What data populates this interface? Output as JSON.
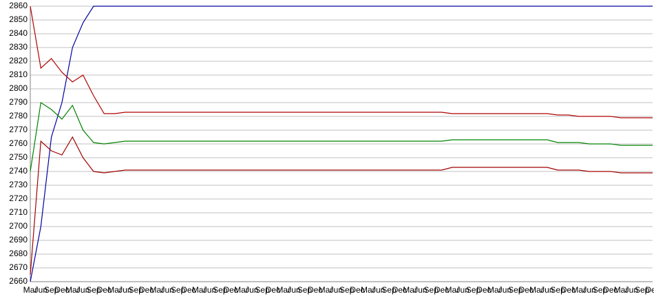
{
  "chart_data": {
    "type": "line",
    "categories": [
      "Mar",
      "Jun",
      "Sep",
      "Dec",
      "Mar",
      "Jun",
      "Sep",
      "Dec",
      "Mar",
      "Jun",
      "Sep",
      "Dec",
      "Mar",
      "Jun",
      "Sep",
      "Dec",
      "Mar",
      "Jun",
      "Sep",
      "Dec",
      "Mar",
      "Jun",
      "Sep",
      "Dec",
      "Mar",
      "Jun",
      "Sep",
      "Dec",
      "Mar",
      "Jun",
      "Sep",
      "Dec",
      "Mar",
      "Jun",
      "Sep",
      "Dec",
      "Mar",
      "Jun",
      "Sep",
      "Dec",
      "Mar",
      "Jun",
      "Sep",
      "Dec",
      "Mar",
      "Jun",
      "Sep",
      "Dec",
      "Mar",
      "Jun",
      "Sep",
      "Dec",
      "Mar",
      "Jun",
      "Sep",
      "Dec",
      "Mar",
      "Jun",
      "Sep",
      "Dec"
    ],
    "series": [
      {
        "color": "#0000a0",
        "values": [
          2660,
          2700,
          2765,
          2790,
          2830,
          2848,
          2860,
          2860,
          2860,
          2860,
          2860,
          2860,
          2860,
          2860,
          2860,
          2860,
          2860,
          2860,
          2860,
          2860,
          2860,
          2860,
          2860,
          2860,
          2860,
          2860,
          2860,
          2860,
          2860,
          2860,
          2860,
          2860,
          2860,
          2860,
          2860,
          2860,
          2860,
          2860,
          2860,
          2860,
          2860,
          2860,
          2860,
          2860,
          2860,
          2860,
          2860,
          2860,
          2860,
          2860,
          2860,
          2860,
          2860,
          2860,
          2860,
          2860,
          2860,
          2860,
          2860,
          2860
        ]
      },
      {
        "color": "#b00000",
        "values": [
          2860,
          2815,
          2822,
          2812,
          2805,
          2810,
          2795,
          2782,
          2782,
          2783,
          2783,
          2783,
          2783,
          2783,
          2783,
          2783,
          2783,
          2783,
          2783,
          2783,
          2783,
          2783,
          2783,
          2783,
          2783,
          2783,
          2783,
          2783,
          2783,
          2783,
          2783,
          2783,
          2783,
          2783,
          2783,
          2783,
          2783,
          2783,
          2783,
          2783,
          2782,
          2782,
          2782,
          2782,
          2782,
          2782,
          2782,
          2782,
          2782,
          2782,
          2781,
          2781,
          2780,
          2780,
          2780,
          2780,
          2779,
          2779,
          2779,
          2779
        ]
      },
      {
        "color": "#008000",
        "values": [
          2740,
          2790,
          2785,
          2778,
          2788,
          2770,
          2761,
          2760,
          2761,
          2762,
          2762,
          2762,
          2762,
          2762,
          2762,
          2762,
          2762,
          2762,
          2762,
          2762,
          2762,
          2762,
          2762,
          2762,
          2762,
          2762,
          2762,
          2762,
          2762,
          2762,
          2762,
          2762,
          2762,
          2762,
          2762,
          2762,
          2762,
          2762,
          2762,
          2762,
          2763,
          2763,
          2763,
          2763,
          2763,
          2763,
          2763,
          2763,
          2763,
          2763,
          2761,
          2761,
          2761,
          2760,
          2760,
          2760,
          2759,
          2759,
          2759,
          2759
        ]
      },
      {
        "color": "#a00000",
        "values": [
          2665,
          2762,
          2755,
          2752,
          2765,
          2750,
          2740,
          2739,
          2740,
          2741,
          2741,
          2741,
          2741,
          2741,
          2741,
          2741,
          2741,
          2741,
          2741,
          2741,
          2741,
          2741,
          2741,
          2741,
          2741,
          2741,
          2741,
          2741,
          2741,
          2741,
          2741,
          2741,
          2741,
          2741,
          2741,
          2741,
          2741,
          2741,
          2741,
          2741,
          2743,
          2743,
          2743,
          2743,
          2743,
          2743,
          2743,
          2743,
          2743,
          2743,
          2741,
          2741,
          2741,
          2740,
          2740,
          2740,
          2739,
          2739,
          2739,
          2739
        ]
      }
    ],
    "ylim": [
      2660,
      2860
    ],
    "yticks": [
      2660,
      2670,
      2680,
      2690,
      2700,
      2710,
      2720,
      2730,
      2740,
      2750,
      2760,
      2770,
      2780,
      2790,
      2800,
      2810,
      2820,
      2830,
      2840,
      2850,
      2860
    ],
    "grid": true
  }
}
